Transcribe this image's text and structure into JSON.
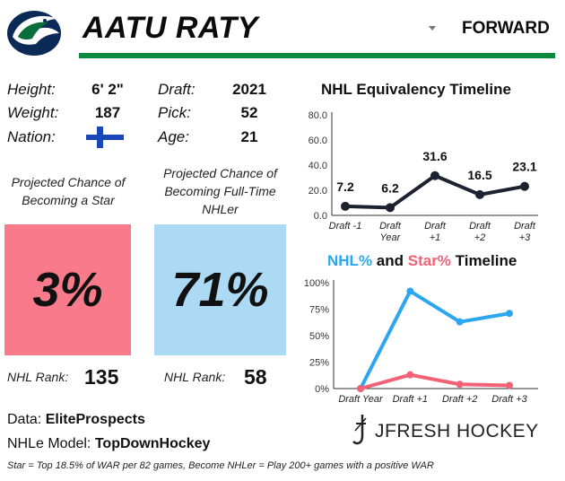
{
  "header": {
    "player_name": "AATU RATY",
    "position": "FORWARD",
    "logo": "vancouver-canucks-orca-logo",
    "brand_color": "#0a8a3c"
  },
  "bio": {
    "height_label": "Height:",
    "height_value": "6' 2\"",
    "weight_label": "Weight:",
    "weight_value": "187",
    "nation_label": "Nation:",
    "nation_flag": "finland-flag-icon",
    "draft_label": "Draft:",
    "draft_value": "2021",
    "pick_label": "Pick:",
    "pick_value": "52",
    "age_label": "Age:",
    "age_value": "21"
  },
  "projections": {
    "star": {
      "title": "Projected Chance of Becoming a Star",
      "value": "3%",
      "rank_label": "NHL Rank:",
      "rank_value": "135",
      "color": "#f97b8b"
    },
    "nhler": {
      "title": "Projected Chance of Becoming Full-Time NHLer",
      "value": "71%",
      "rank_label": "NHL Rank:",
      "rank_value": "58",
      "color": "#acd9f3"
    }
  },
  "sources": {
    "data_label": "Data:",
    "data_value": "EliteProspects",
    "model_label": "NHLe Model:",
    "model_value": "TopDownHockey",
    "footnote": "Star = Top 18.5% of WAR per 82 games, Become NHLer = Play 200+ games with a positive WAR"
  },
  "branding": {
    "text": "JFRESH HOCKEY",
    "icon": "jfresh-hockey-stick-logo"
  },
  "chart_data": [
    {
      "type": "line",
      "title": "NHL Equivalency Timeline",
      "categories": [
        [
          "Draft -1"
        ],
        [
          "Draft",
          "Year"
        ],
        [
          "Draft",
          "+1"
        ],
        [
          "Draft",
          "+2"
        ],
        [
          "Draft",
          "+3"
        ]
      ],
      "values": [
        7.2,
        6.2,
        31.6,
        16.5,
        23.1
      ],
      "data_labels": [
        "7.2",
        "6.2",
        "31.6",
        "16.5",
        "23.1"
      ],
      "y_ticks": [
        "0.0",
        "20.0",
        "40.0",
        "60.0",
        "80.0"
      ],
      "ylim": [
        0,
        80
      ],
      "grid": false,
      "color": "#1d2230"
    },
    {
      "type": "line",
      "title_parts": [
        "NHL%",
        " and ",
        "Star%",
        " Timeline"
      ],
      "categories": [
        "Draft Year",
        "Draft +1",
        "Draft +2",
        "Draft +3"
      ],
      "series": [
        {
          "name": "NHL%",
          "values": [
            0,
            92,
            63,
            71
          ],
          "color": "#2ca6f0"
        },
        {
          "name": "Star%",
          "values": [
            0,
            13,
            4,
            3
          ],
          "color": "#f26175"
        }
      ],
      "y_ticks": [
        "0%",
        "25%",
        "50%",
        "75%",
        "100%"
      ],
      "ylim": [
        0,
        100
      ],
      "grid": false
    }
  ]
}
